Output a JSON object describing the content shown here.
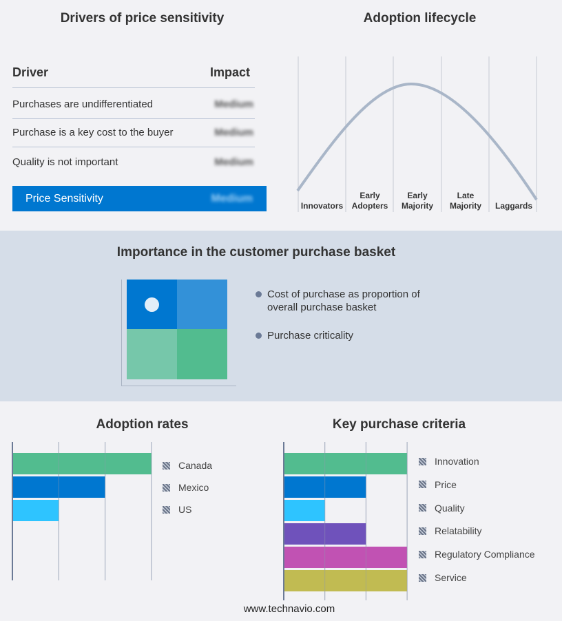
{
  "drivers": {
    "title": "Drivers of price sensitivity",
    "header_driver": "Driver",
    "header_impact": "Impact",
    "rows": [
      {
        "driver": "Purchases are undifferentiated",
        "impact": "Medium"
      },
      {
        "driver": "Purchase is a key cost to the buyer",
        "impact": "Medium"
      },
      {
        "driver": "Quality is not important",
        "impact": "Medium"
      }
    ],
    "summary": {
      "label": "Price Sensitivity",
      "impact": "Medium"
    },
    "accent": "#0077d0"
  },
  "lifecycle": {
    "title": "Adoption lifecycle",
    "stages": [
      "Innovators",
      "Early Adopters",
      "Early Majority",
      "Late Majority",
      "Laggards"
    ]
  },
  "basket": {
    "title": "Importance in the customer purchase basket",
    "bullets": [
      "Cost of purchase as proportion of overall purchase basket",
      "Purchase criticality"
    ],
    "colors": [
      "#0077d0",
      "#3391d8",
      "#76c7aa",
      "#52bc8f"
    ]
  },
  "chart_data": [
    {
      "type": "bar",
      "title": "Adoption rates",
      "orientation": "horizontal",
      "categories": [
        "Canada",
        "Mexico",
        "US"
      ],
      "values": [
        3,
        2,
        1
      ],
      "colors": [
        "#52bc8f",
        "#0077d0",
        "#2ec4ff"
      ],
      "xlim": [
        0,
        3
      ],
      "grid": true,
      "legend": "right"
    },
    {
      "type": "bar",
      "title": "Key purchase criteria",
      "orientation": "horizontal",
      "categories": [
        "Innovation",
        "Price",
        "Quality",
        "Relatability",
        "Regulatory Compliance",
        "Service"
      ],
      "values": [
        3,
        2,
        1,
        2,
        3,
        3
      ],
      "colors": [
        "#52bc8f",
        "#0077d0",
        "#2ec4ff",
        "#6f52bb",
        "#c152b3",
        "#c1bb52"
      ],
      "xlim": [
        0,
        3
      ],
      "grid": true,
      "legend": "right"
    }
  ],
  "footer": "www.technavio.com"
}
